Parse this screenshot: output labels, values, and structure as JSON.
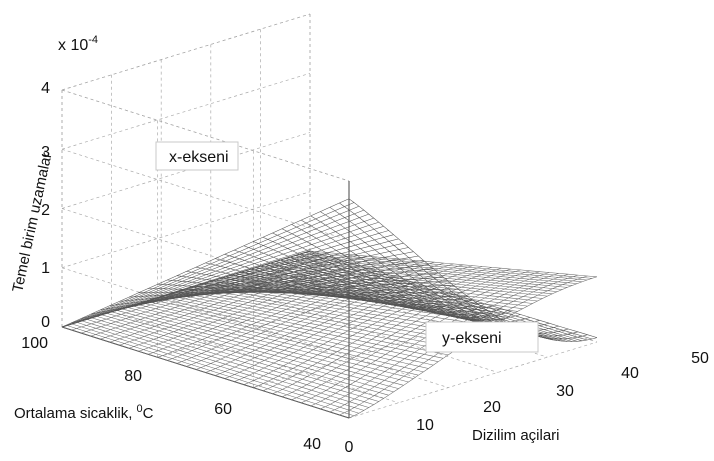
{
  "chart_data": {
    "type": "surface",
    "title": "",
    "xlabel": "Dizilim açilari",
    "ylabel_parts": {
      "text": "Ortalama sicaklik, ",
      "sup": "0",
      "unit": "C"
    },
    "zlabel": "Temel birim uzamalar",
    "z_multiplier": {
      "base": "x 10",
      "exp": "-4"
    },
    "x_ticks": [
      "0",
      "10",
      "20",
      "30",
      "40",
      "50"
    ],
    "y_ticks": [
      "40",
      "60",
      "80",
      "100"
    ],
    "z_ticks": [
      "0",
      "1",
      "2",
      "3",
      "4"
    ],
    "xlim": [
      0,
      50
    ],
    "ylim": [
      40,
      100
    ],
    "zlim": [
      0,
      4
    ],
    "grid": true,
    "series": [
      {
        "name": "x-ekseni",
        "peak_value": 3.7,
        "peak_at": {
          "angle": 0,
          "temperature": 100
        },
        "value_at": {
          "angle": 50,
          "temperature": 40
        },
        "zero_at_temperature": 40
      },
      {
        "name": "y-ekseni",
        "peak_value": 1.1,
        "peak_at": {
          "angle": 50,
          "temperature": 100
        },
        "value_at_angle_0": 0,
        "zero_at_temperature": 40
      }
    ],
    "annotations": [
      {
        "text": "x-ekseni"
      },
      {
        "text": "y-ekseni"
      }
    ]
  }
}
